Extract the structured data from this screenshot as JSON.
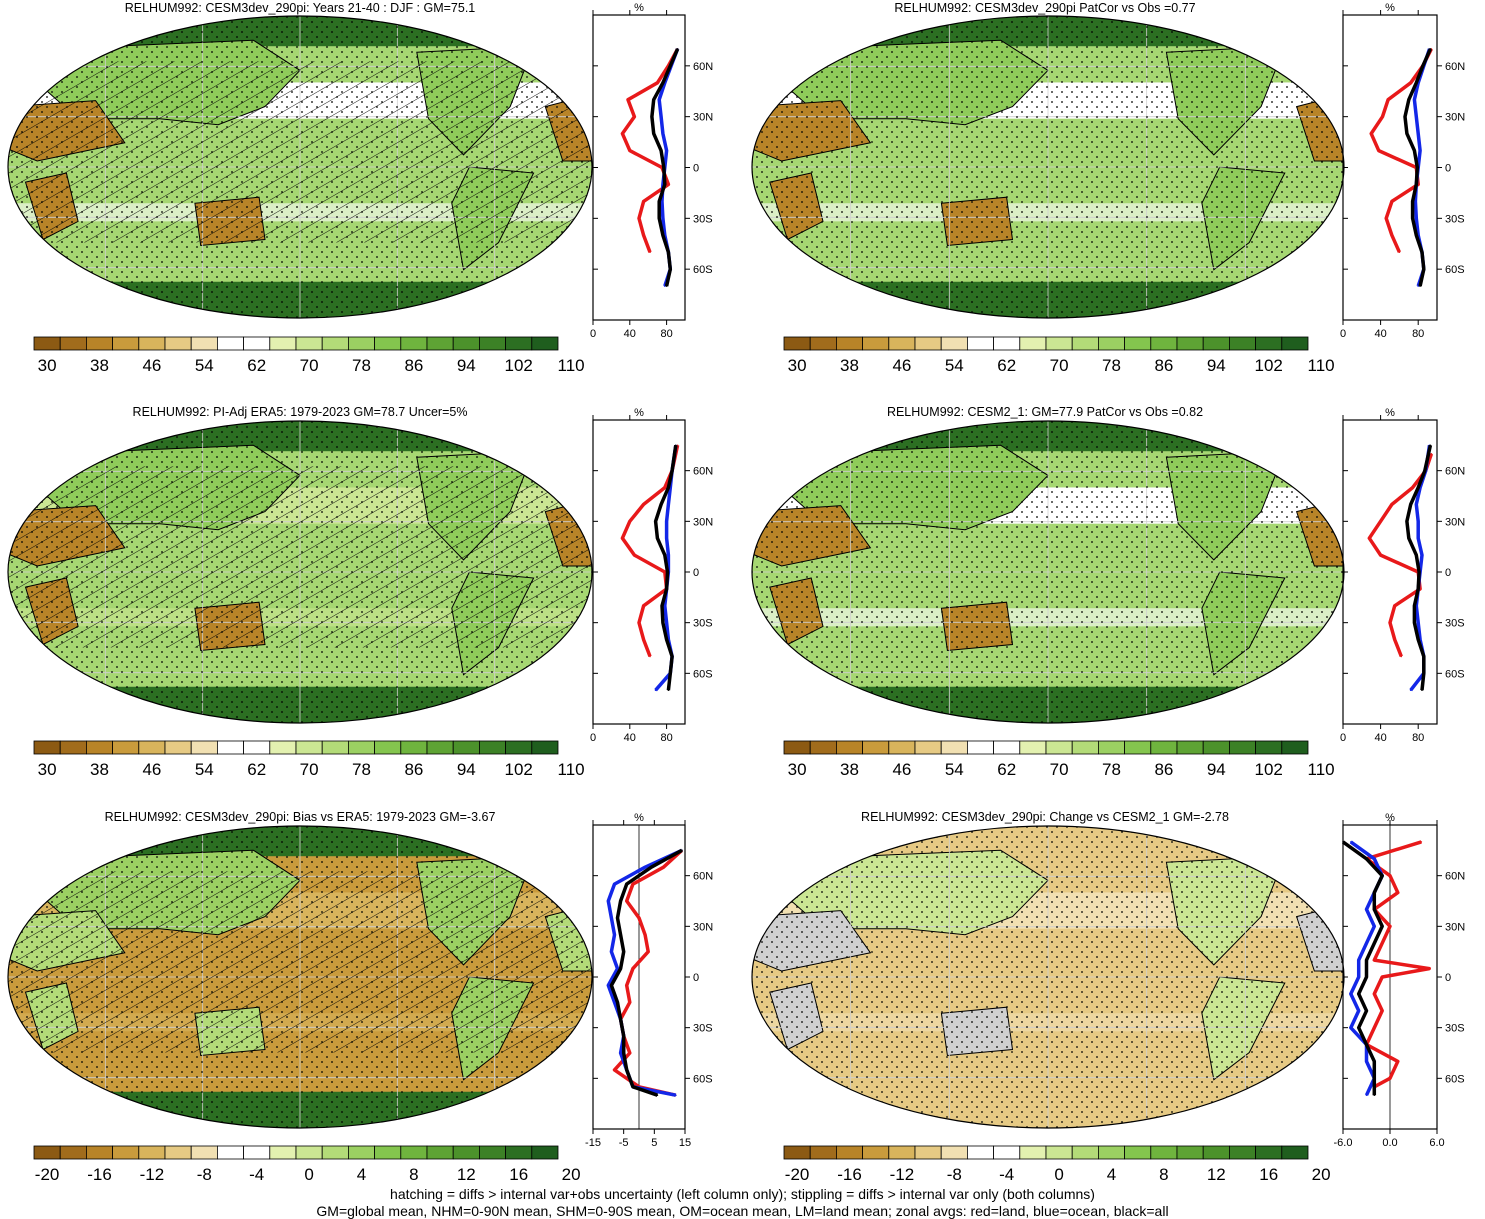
{
  "colors": {
    "land": "#e8191a",
    "ocean": "#1327e8",
    "all": "#000000",
    "grid": "#cfcfcf"
  },
  "footer": {
    "line1": "hatching = diffs > internal var+obs uncertainty (left column only); stippling = diffs > internal var only (both columns)",
    "line2": "GM=global mean, NHM=0-90N mean, SHM=0-90S mean, OM=ocean mean, LM=land mean; zonal avgs: red=land, blue=ocean, black=all"
  },
  "colorbars": {
    "absolute": {
      "labels": [
        "30",
        "38",
        "46",
        "54",
        "62",
        "70",
        "78",
        "86",
        "94",
        "102",
        "110"
      ],
      "colors": [
        "#8c5a13",
        "#a16c1c",
        "#b88428",
        "#c99b3c",
        "#d8b45c",
        "#e6ca84",
        "#f1e0b2",
        "#ffffff",
        "#ffffff",
        "#e3f1b0",
        "#cbe693",
        "#b3db78",
        "#9bd062",
        "#84c54e",
        "#6fb43e",
        "#5ea334",
        "#4c922b",
        "#3c8126",
        "#2c6f22",
        "#1f5e1e"
      ]
    },
    "difference": {
      "labels": [
        "-20",
        "-16",
        "-12",
        "-8",
        "-4",
        "0",
        "4",
        "8",
        "12",
        "16",
        "20"
      ],
      "colors": [
        "#8c5a13",
        "#a16c1c",
        "#b88428",
        "#c99b3c",
        "#d8b45c",
        "#e6ca84",
        "#f1e0b2",
        "#ffffff",
        "#ffffff",
        "#e3f1b0",
        "#cbe693",
        "#b3db78",
        "#9bd062",
        "#84c54e",
        "#6fb43e",
        "#5ea334",
        "#4c922b",
        "#3c8126",
        "#2c6f22",
        "#1f5e1e"
      ]
    }
  },
  "chart_data": [
    {
      "type": "heatmap",
      "title": "RELHUM992: CESM3dev_290pi: Years 21-40 : DJF : GM=75.1",
      "colorbar": "absolute",
      "map": {
        "hatching": true,
        "stippling": true,
        "fills": {
          "ocean": "#a6d772",
          "subtropics": "#ffffff",
          "land": "#8fcc5a",
          "desert": "#b88428",
          "polar": "#2c6f22"
        }
      },
      "zonal": {
        "unit": "%",
        "xlim": [
          0,
          100
        ],
        "xticks": [
          "0",
          "40",
          "80"
        ],
        "lat_ticks": [
          "60N",
          "30N",
          "0",
          "30S",
          "60S"
        ],
        "series": [
          {
            "name": "land",
            "lat": [
              70,
              60,
              50,
              40,
              30,
              20,
              10,
              0,
              -10,
              -20,
              -30,
              -40,
              -50
            ],
            "values": [
              92,
              82,
              70,
              38,
              45,
              32,
              40,
              75,
              82,
              55,
              50,
              55,
              62
            ]
          },
          {
            "name": "ocean",
            "lat": [
              70,
              60,
              50,
              40,
              30,
              20,
              10,
              0,
              -10,
              -20,
              -30,
              -40,
              -50,
              -60,
              -70
            ],
            "values": [
              92,
              85,
              78,
              72,
              74,
              76,
              80,
              78,
              76,
              75,
              76,
              78,
              82,
              84,
              78
            ]
          },
          {
            "name": "all",
            "lat": [
              70,
              60,
              50,
              40,
              30,
              20,
              10,
              0,
              -10,
              -20,
              -30,
              -40,
              -50,
              -60,
              -70
            ],
            "values": [
              92,
              84,
              76,
              66,
              64,
              66,
              74,
              77,
              78,
              72,
              72,
              76,
              82,
              84,
              80
            ]
          }
        ]
      }
    },
    {
      "type": "heatmap",
      "title": "RELHUM992: CESM3dev_290pi PatCor vs Obs =0.77",
      "colorbar": "absolute",
      "map": {
        "hatching": false,
        "stippling": true,
        "fills": {
          "ocean": "#a6d772",
          "subtropics": "#ffffff",
          "land": "#8fcc5a",
          "desert": "#b88428",
          "polar": "#2c6f22"
        }
      },
      "zonal": {
        "unit": "%",
        "xlim": [
          0,
          100
        ],
        "xticks": [
          "0",
          "40",
          "80"
        ],
        "lat_ticks": [
          "60N",
          "30N",
          "0",
          "30S",
          "60S"
        ],
        "series": [
          {
            "name": "land",
            "lat": [
              70,
              60,
              50,
              40,
              30,
              20,
              10,
              0,
              -10,
              -20,
              -30,
              -40,
              -50
            ],
            "values": [
              94,
              85,
              72,
              48,
              42,
              30,
              38,
              78,
              80,
              52,
              46,
              52,
              60
            ]
          },
          {
            "name": "ocean",
            "lat": [
              70,
              60,
              50,
              40,
              30,
              20,
              10,
              0,
              -10,
              -20,
              -30,
              -40,
              -50,
              -60,
              -70
            ],
            "values": [
              92,
              86,
              80,
              76,
              78,
              80,
              82,
              80,
              78,
              77,
              78,
              80,
              84,
              86,
              80
            ]
          },
          {
            "name": "all",
            "lat": [
              70,
              60,
              50,
              40,
              30,
              20,
              10,
              0,
              -10,
              -20,
              -30,
              -40,
              -50,
              -60,
              -70
            ],
            "values": [
              93,
              85,
              78,
              70,
              66,
              68,
              76,
              79,
              78,
              74,
              74,
              78,
              84,
              86,
              82
            ]
          }
        ]
      }
    },
    {
      "type": "heatmap",
      "title": "RELHUM992: PI-Adj ERA5: 1979-2023 GM=78.7 Uncer=5%",
      "colorbar": "absolute",
      "map": {
        "hatching": true,
        "stippling": true,
        "fills": {
          "ocean": "#a6d772",
          "subtropics": "#cbe693",
          "land": "#8fcc5a",
          "desert": "#b88428",
          "polar": "#2c6f22"
        }
      },
      "zonal": {
        "unit": "%",
        "xlim": [
          0,
          100
        ],
        "xticks": [
          "0",
          "40",
          "80"
        ],
        "lat_ticks": [
          "60N",
          "30N",
          "0",
          "30S",
          "60S"
        ],
        "series": [
          {
            "name": "land",
            "lat": [
              75,
              60,
              50,
              40,
              30,
              20,
              10,
              0,
              -10,
              -20,
              -30,
              -40,
              -50
            ],
            "values": [
              92,
              86,
              78,
              55,
              40,
              32,
              45,
              78,
              80,
              55,
              50,
              55,
              62
            ]
          },
          {
            "name": "ocean",
            "lat": [
              75,
              60,
              50,
              40,
              30,
              20,
              10,
              0,
              -10,
              -20,
              -30,
              -40,
              -50,
              -60,
              -70
            ],
            "values": [
              90,
              86,
              84,
              82,
              80,
              80,
              82,
              82,
              80,
              78,
              80,
              82,
              86,
              84,
              68
            ]
          },
          {
            "name": "all",
            "lat": [
              75,
              60,
              50,
              40,
              30,
              20,
              10,
              0,
              -10,
              -20,
              -30,
              -40,
              -50,
              -60,
              -70
            ],
            "values": [
              90,
              86,
              82,
              74,
              68,
              70,
              78,
              81,
              80,
              75,
              76,
              80,
              86,
              84,
              82
            ]
          }
        ]
      }
    },
    {
      "type": "heatmap",
      "title": "RELHUM992: CESM2_1: GM=77.9 PatCor vs Obs =0.82",
      "colorbar": "absolute",
      "map": {
        "hatching": false,
        "stippling": true,
        "fills": {
          "ocean": "#a6d772",
          "subtropics": "#ffffff",
          "land": "#8fcc5a",
          "desert": "#b88428",
          "polar": "#2c6f22"
        }
      },
      "zonal": {
        "unit": "%",
        "xlim": [
          0,
          100
        ],
        "xticks": [
          "0",
          "40",
          "80"
        ],
        "lat_ticks": [
          "60N",
          "30N",
          "0",
          "30S",
          "60S"
        ],
        "series": [
          {
            "name": "land",
            "lat": [
              70,
              60,
              50,
              40,
              30,
              20,
              10,
              0,
              -10,
              -20,
              -30,
              -40,
              -50
            ],
            "values": [
              94,
              88,
              74,
              52,
              40,
              28,
              40,
              80,
              82,
              55,
              50,
              55,
              62
            ]
          },
          {
            "name": "ocean",
            "lat": [
              75,
              60,
              50,
              40,
              30,
              20,
              10,
              0,
              -10,
              -20,
              -30,
              -40,
              -50,
              -60,
              -70
            ],
            "values": [
              92,
              88,
              82,
              78,
              80,
              80,
              84,
              82,
              80,
              78,
              80,
              82,
              86,
              86,
              72
            ]
          },
          {
            "name": "all",
            "lat": [
              75,
              60,
              50,
              40,
              30,
              20,
              10,
              0,
              -10,
              -20,
              -30,
              -40,
              -50,
              -60,
              -70
            ],
            "values": [
              93,
              87,
              80,
              72,
              68,
              70,
              78,
              81,
              80,
              76,
              76,
              80,
              86,
              86,
              84
            ]
          }
        ]
      }
    },
    {
      "type": "heatmap",
      "title": "RELHUM992: CESM3dev_290pi: Bias vs ERA5: 1979-2023 GM=-3.67",
      "colorbar": "difference",
      "map": {
        "hatching": true,
        "stippling": true,
        "fills": {
          "ocean": "#c99b3c",
          "subtropics": "#d8b45c",
          "land": "#9bd062",
          "desert": "#b3db78",
          "polar": "#2c6f22"
        }
      },
      "zonal": {
        "unit": "%",
        "xlim": [
          -15,
          15
        ],
        "xticks": [
          "-15",
          "-5",
          "5",
          "15"
        ],
        "lat_ticks": [
          "60N",
          "30N",
          "0",
          "30S",
          "60S"
        ],
        "series": [
          {
            "name": "land",
            "lat": [
              75,
              65,
              55,
              45,
              35,
              25,
              15,
              5,
              -5,
              -15,
              -25,
              -35,
              -45,
              -55,
              -65,
              -70
            ],
            "values": [
              14,
              8,
              -2,
              -4,
              0,
              2,
              3,
              -2,
              -4,
              -3,
              -6,
              -5,
              -3,
              -8,
              0,
              12
            ]
          },
          {
            "name": "ocean",
            "lat": [
              75,
              65,
              55,
              45,
              35,
              25,
              15,
              5,
              -5,
              -15,
              -25,
              -35,
              -45,
              -55,
              -65,
              -70
            ],
            "values": [
              14,
              2,
              -8,
              -10,
              -9,
              -8,
              -9,
              -7,
              -10,
              -8,
              -6,
              -5,
              -6,
              -4,
              -2,
              12
            ]
          },
          {
            "name": "all",
            "lat": [
              75,
              65,
              55,
              45,
              35,
              25,
              15,
              5,
              -5,
              -15,
              -25,
              -35,
              -45,
              -55,
              -65,
              -70
            ],
            "values": [
              14,
              4,
              -4,
              -6,
              -7,
              -6,
              -5,
              -6,
              -9,
              -7,
              -6,
              -5,
              -5,
              -4,
              -2,
              6
            ]
          }
        ]
      }
    },
    {
      "type": "heatmap",
      "title": "RELHUM992: CESM3dev_290pi: Change vs CESM2_1 GM=-2.78",
      "colorbar": "difference",
      "map": {
        "hatching": false,
        "stippling": true,
        "fills": {
          "ocean": "#e6ca84",
          "subtropics": "#f1e0b2",
          "land": "#cbe693",
          "desert": "#d0d0d0",
          "polar": "#e6ca84"
        }
      },
      "zonal": {
        "unit": "%",
        "xlim": [
          -6,
          6
        ],
        "xticks": [
          "-6.0",
          "0.0",
          "6.0"
        ],
        "lat_ticks": [
          "60N",
          "30N",
          "0",
          "30S",
          "60S"
        ],
        "series": [
          {
            "name": "land",
            "lat": [
              80,
              70,
              60,
              50,
              40,
              30,
              20,
              10,
              5,
              0,
              -10,
              -20,
              -30,
              -40,
              -50,
              -60,
              -65
            ],
            "values": [
              4,
              -3,
              0,
              1,
              -2,
              0,
              -1,
              -2,
              5,
              -1,
              -2,
              -1,
              -2,
              -3,
              1,
              0,
              -2
            ]
          },
          {
            "name": "ocean",
            "lat": [
              80,
              70,
              60,
              50,
              40,
              30,
              20,
              10,
              0,
              -10,
              -20,
              -30,
              -40,
              -50,
              -60,
              -70
            ],
            "values": [
              -5,
              -2,
              -1,
              -2,
              -3,
              -2,
              -3,
              -4,
              -4,
              -5,
              -4,
              -5,
              -3,
              -3,
              -2,
              -3
            ]
          },
          {
            "name": "all",
            "lat": [
              80,
              70,
              60,
              50,
              40,
              30,
              20,
              10,
              0,
              -10,
              -20,
              -30,
              -40,
              -50,
              -60,
              -70
            ],
            "values": [
              -6,
              -3,
              -1,
              -2,
              -2,
              -1,
              -2,
              -3,
              -3,
              -4,
              -3,
              -4,
              -3,
              -2,
              -2,
              -2
            ]
          }
        ]
      }
    }
  ]
}
